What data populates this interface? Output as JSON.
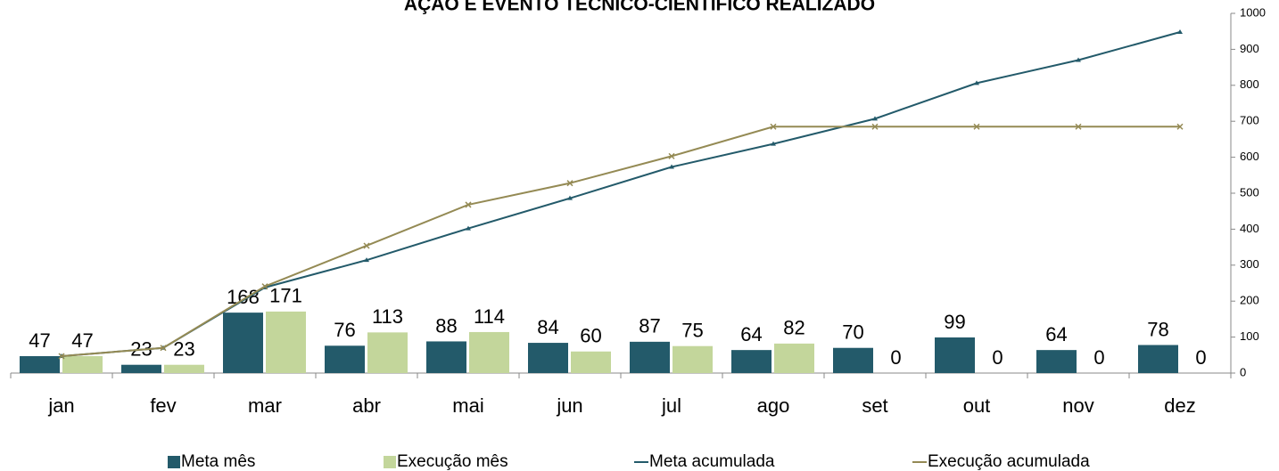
{
  "chart_data": {
    "type": "bar_line",
    "title": "AÇÃO E EVENTO TÉCNICO-CIENTÍFICO REALIZADO",
    "categories": [
      "jan",
      "fev",
      "mar",
      "abr",
      "mai",
      "jun",
      "jul",
      "ago",
      "set",
      "out",
      "nov",
      "dez"
    ],
    "series": [
      {
        "name": "Meta mês",
        "type": "bar",
        "color": "#235a6a",
        "values": [
          47,
          23,
          168,
          76,
          88,
          84,
          87,
          64,
          70,
          99,
          64,
          78
        ]
      },
      {
        "name": "Execução mês",
        "type": "bar",
        "color": "#c3d69b",
        "values": [
          47,
          23,
          171,
          113,
          114,
          60,
          75,
          82,
          0,
          0,
          0,
          0
        ]
      },
      {
        "name": "Meta acumulada",
        "type": "line",
        "color": "#235a6a",
        "values": [
          47,
          70,
          238,
          314,
          402,
          486,
          573,
          637,
          707,
          806,
          870,
          948
        ]
      },
      {
        "name": "Execução acumulada",
        "type": "line",
        "color": "#948a54",
        "values": [
          47,
          70,
          241,
          354,
          468,
          528,
          603,
          685,
          685,
          685,
          685,
          685
        ]
      }
    ],
    "ylim": [
      0,
      1000
    ],
    "yticks": [
      0,
      100,
      200,
      300,
      400,
      500,
      600,
      700,
      800,
      900,
      1000
    ],
    "legend": "bottom"
  }
}
